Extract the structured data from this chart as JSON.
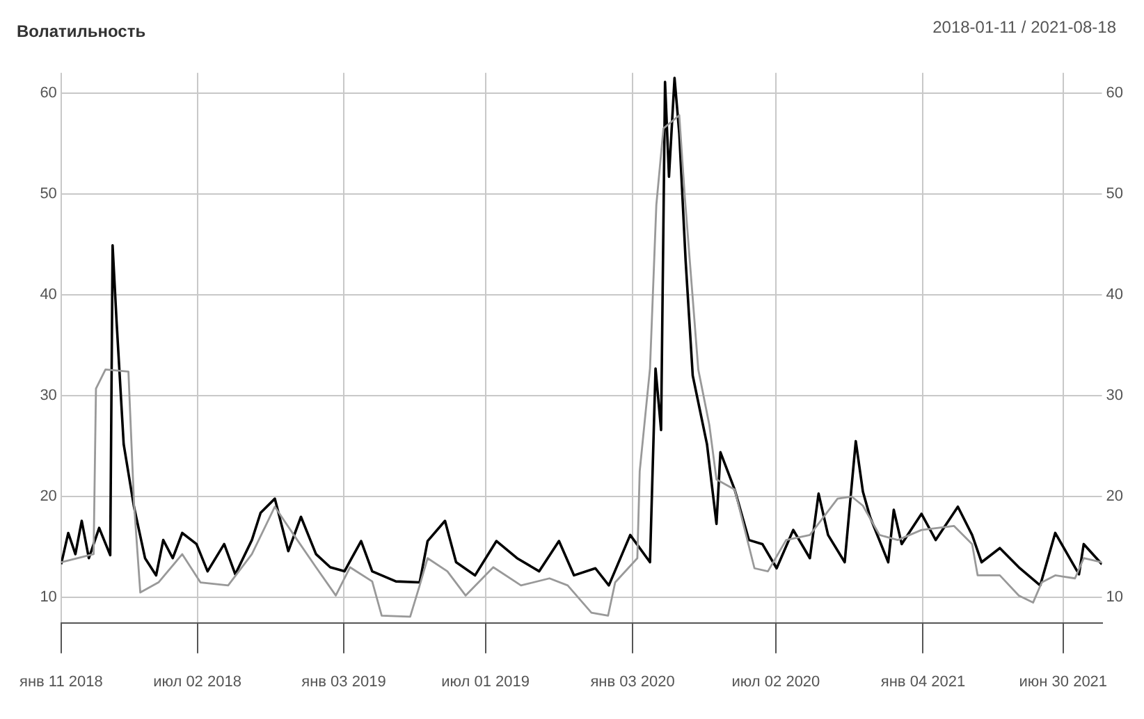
{
  "chart_data": {
    "type": "line",
    "title": "Волатильность",
    "annotations": [
      "2018-01-11 / 2021-08-18"
    ],
    "xlim": [
      "2018-01-11",
      "2021-08-18"
    ],
    "xticks": [
      {
        "value": "2018-01-11",
        "label": "янв 11 2018"
      },
      {
        "value": "2018-07-02",
        "label": "июл 02 2018"
      },
      {
        "value": "2019-01-03",
        "label": "янв 03 2019"
      },
      {
        "value": "2019-07-01",
        "label": "июл 01 2019"
      },
      {
        "value": "2020-01-03",
        "label": "янв 03 2020"
      },
      {
        "value": "2020-07-02",
        "label": "июл 02 2020"
      },
      {
        "value": "2021-01-04",
        "label": "янв 04 2021"
      },
      {
        "value": "2021-06-30",
        "label": "июн 30 2021"
      }
    ],
    "ylim": [
      7.5,
      62
    ],
    "yticks": [
      10,
      20,
      30,
      40,
      50,
      60
    ],
    "y2lim": [
      7.5,
      62
    ],
    "y2ticks": [
      10,
      20,
      30,
      40,
      50,
      60
    ],
    "grid": true,
    "legend": false,
    "marker": "none",
    "line_style": "solid",
    "series": [
      {
        "color": "#999999",
        "x": [
          "2018-01-11",
          "2018-02-21",
          "2018-02-24",
          "2018-03-08",
          "2018-04-06",
          "2018-04-13",
          "2018-04-21",
          "2018-05-14",
          "2018-06-13",
          "2018-07-06",
          "2018-08-10",
          "2018-09-09",
          "2018-10-08",
          "2018-11-01",
          "2018-11-29",
          "2018-12-24",
          "2019-01-11",
          "2019-02-08",
          "2019-02-20",
          "2019-03-28",
          "2019-04-09",
          "2019-04-19",
          "2019-05-14",
          "2019-06-06",
          "2019-07-11",
          "2019-08-15",
          "2019-09-20",
          "2019-10-13",
          "2019-11-12",
          "2019-12-03",
          "2019-12-12",
          "2020-01-09",
          "2020-01-12",
          "2020-01-25",
          "2020-02-02",
          "2020-02-11",
          "2020-03-02",
          "2020-03-09",
          "2020-03-26",
          "2020-04-09",
          "2020-04-18",
          "2020-05-11",
          "2020-06-05",
          "2020-06-22",
          "2020-07-15",
          "2020-08-14",
          "2020-09-18",
          "2020-10-06",
          "2020-10-20",
          "2020-11-10",
          "2020-12-03",
          "2021-01-02",
          "2021-02-12",
          "2021-03-07",
          "2021-03-14",
          "2021-04-11",
          "2021-05-05",
          "2021-05-23",
          "2021-06-03",
          "2021-06-20",
          "2021-07-15",
          "2021-07-26",
          "2021-08-18"
        ],
        "values": [
          13.5,
          14.3,
          30.7,
          32.6,
          32.4,
          19.4,
          10.5,
          11.5,
          14.3,
          11.5,
          11.2,
          14.3,
          19,
          16.2,
          13,
          10.2,
          13,
          11.6,
          8.2,
          8.1,
          11.2,
          13.9,
          12.6,
          10.2,
          13,
          11.2,
          11.9,
          11.2,
          8.5,
          8.2,
          11.5,
          13.9,
          22.5,
          32.7,
          48.9,
          56.5,
          57.8,
          49.7,
          32.6,
          27.1,
          21.7,
          20.7,
          12.9,
          12.6,
          15.7,
          16.2,
          19.8,
          20,
          19.1,
          16.2,
          15.7,
          16.7,
          17.1,
          15.3,
          12.2,
          12.2,
          10.2,
          9.5,
          11.5,
          12.2,
          11.9,
          13.9,
          13.5
        ]
      },
      {
        "color": "#000000",
        "x": [
          "2018-01-11",
          "2018-01-20",
          "2018-01-29",
          "2018-02-06",
          "2018-02-15",
          "2018-02-28",
          "2018-03-14",
          "2018-03-17",
          "2018-03-22",
          "2018-03-31",
          "2018-04-13",
          "2018-04-27",
          "2018-05-11",
          "2018-05-20",
          "2018-06-01",
          "2018-06-13",
          "2018-07-01",
          "2018-07-15",
          "2018-08-05",
          "2018-08-19",
          "2018-09-09",
          "2018-09-20",
          "2018-10-08",
          "2018-10-25",
          "2018-11-10",
          "2018-11-29",
          "2018-12-17",
          "2019-01-04",
          "2019-01-25",
          "2019-02-08",
          "2019-03-10",
          "2019-04-09",
          "2019-04-19",
          "2019-05-11",
          "2019-05-25",
          "2019-06-18",
          "2019-07-15",
          "2019-08-10",
          "2019-09-07",
          "2019-10-02",
          "2019-10-21",
          "2019-11-17",
          "2019-12-04",
          "2019-12-31",
          "2020-01-25",
          "2020-02-01",
          "2020-02-08",
          "2020-02-13",
          "2020-02-18",
          "2020-02-25",
          "2020-03-02",
          "2020-03-10",
          "2020-03-19",
          "2020-04-06",
          "2020-04-18",
          "2020-04-23",
          "2020-05-11",
          "2020-05-29",
          "2020-06-15",
          "2020-07-03",
          "2020-07-24",
          "2020-08-14",
          "2020-08-25",
          "2020-09-06",
          "2020-09-27",
          "2020-10-03",
          "2020-10-11",
          "2020-10-20",
          "2020-10-29",
          "2020-11-21",
          "2020-11-28",
          "2020-12-08",
          "2021-01-02",
          "2021-01-20",
          "2021-02-17",
          "2021-03-07",
          "2021-03-19",
          "2021-04-11",
          "2021-05-05",
          "2021-06-01",
          "2021-06-20",
          "2021-07-20",
          "2021-07-26",
          "2021-08-18"
        ],
        "values": [
          13.3,
          16.4,
          14.3,
          17.6,
          13.9,
          16.9,
          14.2,
          44.9,
          37.4,
          25.2,
          19,
          13.9,
          12.2,
          15.7,
          13.9,
          16.4,
          15.3,
          12.6,
          15.3,
          12.3,
          15.7,
          18.4,
          19.8,
          14.6,
          18,
          14.3,
          13,
          12.6,
          15.6,
          12.6,
          11.6,
          11.5,
          15.6,
          17.6,
          13.5,
          12.2,
          15.6,
          13.9,
          12.6,
          15.6,
          12.2,
          12.9,
          11.2,
          16.2,
          13.5,
          32.7,
          26.6,
          61.1,
          51.7,
          61.5,
          56,
          43.4,
          32,
          25.2,
          17.3,
          24.4,
          20.7,
          15.7,
          15.3,
          12.9,
          16.7,
          13.9,
          20.3,
          16.2,
          13.5,
          18.7,
          25.5,
          20.5,
          18,
          13.5,
          18.7,
          15.3,
          18.3,
          15.7,
          19,
          16.2,
          13.5,
          14.9,
          13,
          11.2,
          16.4,
          12.3,
          15.3,
          13.3
        ]
      }
    ]
  }
}
